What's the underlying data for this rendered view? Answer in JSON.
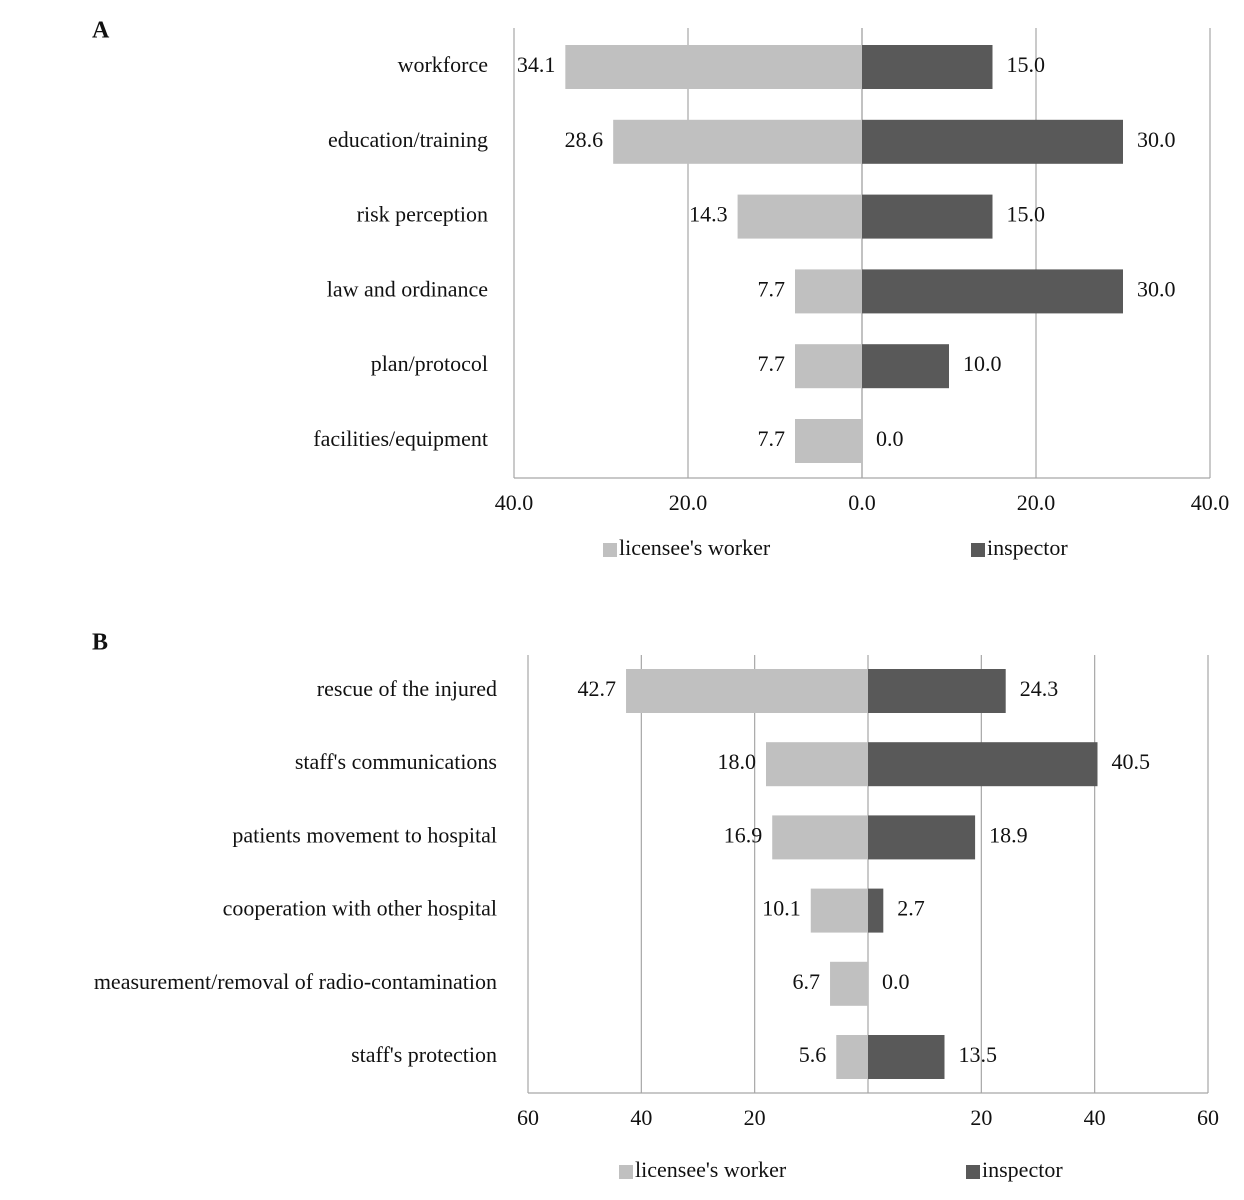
{
  "chart_data": [
    {
      "type": "bar",
      "title": "A",
      "categories": [
        "workforce",
        "education/training",
        "risk perception",
        "law and ordinance",
        "plan/protocol",
        "facilities/equipment"
      ],
      "series": [
        {
          "name": "licensee's worker",
          "color": "#c0c0c0",
          "values": [
            -34.1,
            -28.6,
            -14.3,
            -7.7,
            -7.7,
            -7.7
          ],
          "value_labels": [
            "34.1",
            "28.6",
            "14.3",
            "7.7",
            "7.7",
            "7.7"
          ]
        },
        {
          "name": "inspector",
          "color": "#595959",
          "values": [
            15,
            30,
            15,
            30,
            10,
            0
          ],
          "value_labels": [
            "15.0",
            "30.0",
            "15.0",
            "30.0",
            "10.0",
            "0.0"
          ]
        }
      ],
      "xlim": [
        -40,
        40
      ],
      "xticks": [
        {
          "value": -40,
          "label": "40.0"
        },
        {
          "value": -20,
          "label": "20.0"
        },
        {
          "value": 0,
          "label": "0.0"
        },
        {
          "value": 20,
          "label": "20.0"
        },
        {
          "value": 40,
          "label": "40.0"
        }
      ],
      "grid": true,
      "legend": "bottom"
    },
    {
      "type": "bar",
      "title": "B",
      "categories": [
        "rescue of the injured",
        "staff's communications",
        "patients movement to hospital",
        "cooperation with other hospital",
        "measurement/removal of radio-contamination",
        "staff's protection"
      ],
      "series": [
        {
          "name": "licensee's worker",
          "color": "#c0c0c0",
          "values": [
            -42.7,
            -18.0,
            -16.9,
            -10.1,
            -6.7,
            -5.6
          ],
          "value_labels": [
            "42.7",
            "18.0",
            "16.9",
            "10.1",
            "6.7",
            "5.6"
          ]
        },
        {
          "name": "inspector",
          "color": "#595959",
          "values": [
            24.3,
            40.5,
            18.9,
            2.7,
            0,
            13.5
          ],
          "value_labels": [
            "24.3",
            "40.5",
            "18.9",
            "2.7",
            "0.0",
            "13.5"
          ]
        }
      ],
      "xlim": [
        -60,
        60
      ],
      "xticks": [
        {
          "value": -60,
          "label": "60"
        },
        {
          "value": -40,
          "label": "40"
        },
        {
          "value": -20,
          "label": "20"
        },
        {
          "value": 20,
          "label": "20"
        },
        {
          "value": 40,
          "label": "40"
        },
        {
          "value": 60,
          "label": "60"
        }
      ],
      "grid": true,
      "legend": "bottom"
    }
  ]
}
